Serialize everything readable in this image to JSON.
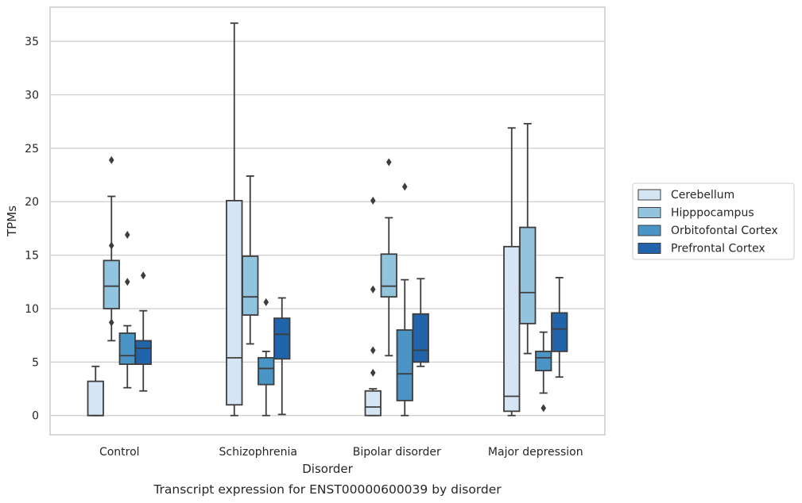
{
  "caption": "Transcript expression for ENST00000600039 by disorder",
  "chart_data": {
    "type": "box",
    "xlabel": "Disorder",
    "ylabel": "TPMs",
    "ylim": [
      -1.8,
      38.2
    ],
    "yticks": [
      0,
      5,
      10,
      15,
      20,
      25,
      30,
      35
    ],
    "grid": true,
    "legend_position": "right",
    "categories": [
      "Control",
      "Schizophrenia",
      "Bipolar disorder",
      "Major depression"
    ],
    "series": [
      {
        "name": "Cerebellum",
        "color": "#d6e5f4",
        "boxes": [
          {
            "whisker_low": 0,
            "q1": 0,
            "median": 0,
            "q3": 3.2,
            "whisker_high": 4.6,
            "outliers": []
          },
          {
            "whisker_low": 0,
            "q1": 1.0,
            "median": 5.4,
            "q3": 20.1,
            "whisker_high": 36.7,
            "outliers": []
          },
          {
            "whisker_low": 0,
            "q1": 0,
            "median": 0.8,
            "q3": 2.3,
            "whisker_high": 2.5,
            "outliers": [
              6.1,
              4.0,
              11.8,
              20.1
            ]
          },
          {
            "whisker_low": 0,
            "q1": 0.4,
            "median": 1.8,
            "q3": 15.8,
            "whisker_high": 26.9,
            "outliers": []
          }
        ]
      },
      {
        "name": "Hipppocampus",
        "color": "#93c4de",
        "boxes": [
          {
            "whisker_low": 7.0,
            "q1": 10.0,
            "median": 12.1,
            "q3": 14.5,
            "whisker_high": 20.5,
            "outliers": [
              8.7,
              15.9,
              23.9
            ]
          },
          {
            "whisker_low": 6.7,
            "q1": 9.4,
            "median": 11.1,
            "q3": 14.9,
            "whisker_high": 22.4,
            "outliers": []
          },
          {
            "whisker_low": 5.6,
            "q1": 11.1,
            "median": 12.1,
            "q3": 15.1,
            "whisker_high": 18.5,
            "outliers": [
              23.7
            ]
          },
          {
            "whisker_low": 5.8,
            "q1": 8.6,
            "median": 11.5,
            "q3": 17.6,
            "whisker_high": 27.3,
            "outliers": []
          }
        ]
      },
      {
        "name": "Orbitofontal Cortex",
        "color": "#4b94c6",
        "boxes": [
          {
            "whisker_low": 2.6,
            "q1": 4.8,
            "median": 5.6,
            "q3": 7.7,
            "whisker_high": 8.4,
            "outliers": [
              12.5,
              16.9
            ]
          },
          {
            "whisker_low": 0,
            "q1": 2.9,
            "median": 4.4,
            "q3": 5.4,
            "whisker_high": 6.0,
            "outliers": [
              10.6
            ]
          },
          {
            "whisker_low": 0,
            "q1": 1.4,
            "median": 3.9,
            "q3": 8.0,
            "whisker_high": 12.7,
            "outliers": [
              21.4
            ]
          },
          {
            "whisker_low": 2.1,
            "q1": 4.2,
            "median": 5.4,
            "q3": 6.0,
            "whisker_high": 7.8,
            "outliers": [
              0.7
            ]
          }
        ]
      },
      {
        "name": "Prefrontal Cortex",
        "color": "#2164ab",
        "boxes": [
          {
            "whisker_low": 2.3,
            "q1": 4.8,
            "median": 6.3,
            "q3": 7.0,
            "whisker_high": 9.8,
            "outliers": [
              13.1
            ]
          },
          {
            "whisker_low": 0.1,
            "q1": 5.3,
            "median": 7.6,
            "q3": 9.1,
            "whisker_high": 11.0,
            "outliers": []
          },
          {
            "whisker_low": 4.6,
            "q1": 5.0,
            "median": 6.1,
            "q3": 9.5,
            "whisker_high": 12.8,
            "outliers": []
          },
          {
            "whisker_low": 3.6,
            "q1": 6.0,
            "median": 8.1,
            "q3": 9.6,
            "whisker_high": 12.9,
            "outliers": []
          }
        ]
      }
    ]
  }
}
